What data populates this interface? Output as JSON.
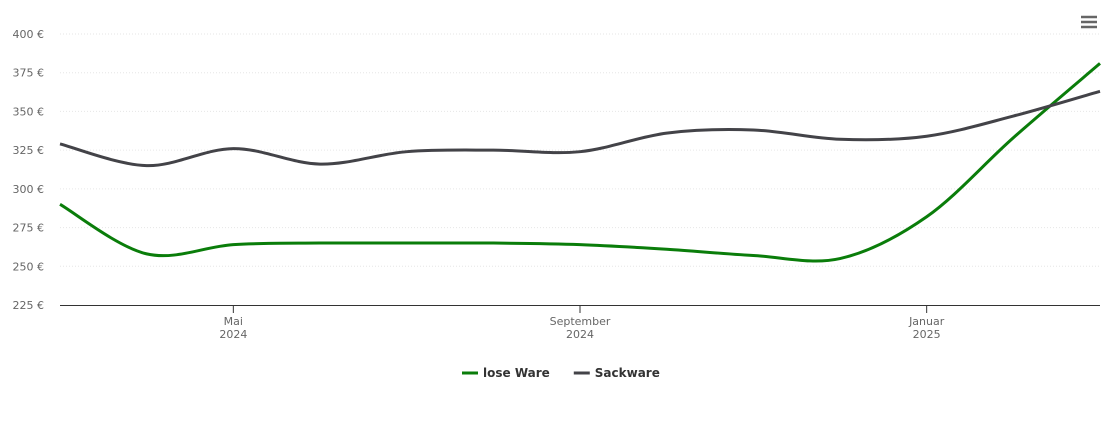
{
  "chart_data": {
    "type": "line",
    "x": [
      "2024-03",
      "2024-04",
      "2024-05",
      "2024-06",
      "2024-07",
      "2024-08",
      "2024-09",
      "2024-10",
      "2024-11",
      "2024-12",
      "2025-01",
      "2025-02",
      "2025-03"
    ],
    "series": [
      {
        "name": "lose Ware",
        "color": "#0a7d0a",
        "values": [
          290,
          258,
          264,
          265,
          265,
          265,
          264,
          261,
          257,
          255,
          282,
          333,
          381
        ]
      },
      {
        "name": "Sackware",
        "color": "#434348",
        "values": [
          329,
          315,
          326,
          316,
          324,
          325,
          324,
          336,
          338,
          332,
          334,
          347,
          363
        ]
      }
    ],
    "xlim": [
      "2024-03",
      "2025-03"
    ],
    "xticks": [
      {
        "value": "2024-05",
        "label": "Mai\n2024"
      },
      {
        "value": "2024-09",
        "label": "September\n2024"
      },
      {
        "value": "2025-01",
        "label": "Januar\n2025"
      }
    ],
    "ylim": [
      225,
      400
    ],
    "yticks": [
      {
        "value": 225,
        "label": "225 €"
      },
      {
        "value": 250,
        "label": "250 €"
      },
      {
        "value": 275,
        "label": "275 €"
      },
      {
        "value": 300,
        "label": "300 €"
      },
      {
        "value": 325,
        "label": "325 €"
      },
      {
        "value": 350,
        "label": "350 €"
      },
      {
        "value": 375,
        "label": "375 €"
      },
      {
        "value": 400,
        "label": "400 €"
      }
    ],
    "grid": true,
    "legend": "bottom"
  }
}
